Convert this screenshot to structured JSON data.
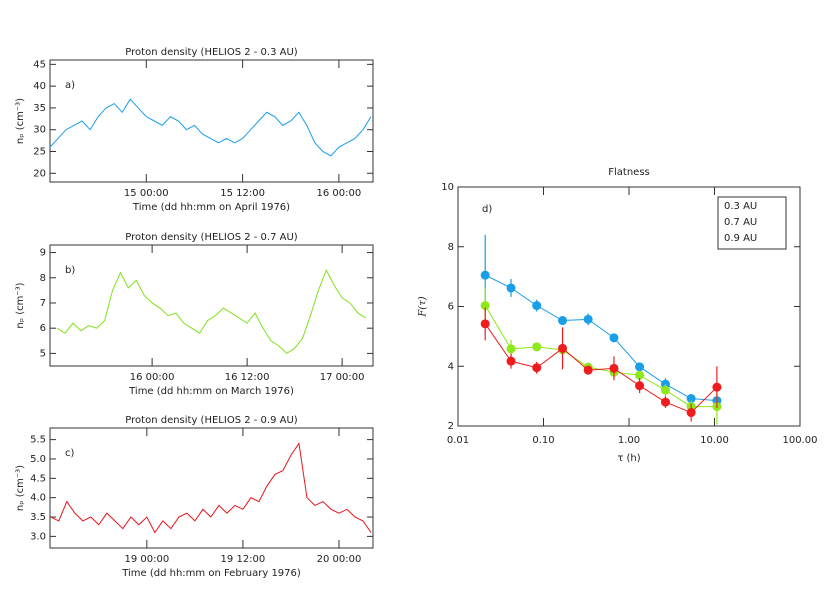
{
  "chart_data": [
    {
      "type": "line",
      "title": "Proton density (HELIOS 2 - 0.3 AU)",
      "annotation": "a)",
      "ylabel": "nₚ (cm⁻³)",
      "xlabel": "Time (dd hh:mm on April 1976)",
      "x": [
        -12,
        -11,
        -10,
        -9,
        -8,
        -7,
        -6,
        -5,
        -4,
        -3,
        -2,
        -1,
        0,
        1,
        2,
        3,
        4,
        5,
        6,
        7,
        8,
        9,
        10,
        11,
        12,
        13,
        14,
        15,
        16,
        17,
        18,
        19,
        20,
        21,
        22,
        23,
        24,
        25,
        26,
        27,
        28
      ],
      "series": [
        {
          "name": "0.3 AU",
          "color": "#1a9ee8",
          "values": [
            26,
            28,
            30,
            31,
            32,
            30,
            33,
            35,
            36,
            34,
            37,
            35,
            33,
            32,
            31,
            33,
            32,
            30,
            31,
            29,
            28,
            27,
            28,
            27,
            28,
            30,
            32,
            34,
            33,
            31,
            32,
            34,
            31,
            27,
            25,
            24,
            26,
            27,
            28,
            30,
            33
          ]
        }
      ],
      "xlim": [
        -12,
        28.25
      ],
      "ylim": [
        18,
        46
      ],
      "yticks": [
        20,
        25,
        30,
        35,
        40,
        45
      ],
      "xticks": [
        {
          "value": 0,
          "label": "15 00:00"
        },
        {
          "value": 12,
          "label": "15 12:00"
        },
        {
          "value": 24,
          "label": "16 00:00"
        }
      ]
    },
    {
      "type": "line",
      "title": "Proton density (HELIOS 2 - 0.7 AU)",
      "annotation": "b)",
      "ylabel": "nₚ (cm⁻³)",
      "xlabel": "Time (dd hh:mm on March 1976)",
      "x": [
        -12,
        -11,
        -10,
        -9,
        -8,
        -7,
        -6,
        -5,
        -4,
        -3,
        -2,
        -1,
        0,
        1,
        2,
        3,
        4,
        5,
        6,
        7,
        8,
        9,
        10,
        11,
        12,
        13,
        14,
        15,
        16,
        17,
        18,
        19,
        20,
        21,
        22,
        23,
        24,
        25,
        26,
        27
      ],
      "series": [
        {
          "name": "0.7 AU",
          "color": "#7fe21a",
          "values": [
            6,
            5.8,
            6.2,
            5.9,
            6.1,
            6,
            6.3,
            7.5,
            8.2,
            7.6,
            7.9,
            7.3,
            7,
            6.8,
            6.5,
            6.6,
            6.2,
            6,
            5.8,
            6.3,
            6.5,
            6.8,
            6.6,
            6.4,
            6.2,
            6.6,
            6,
            5.5,
            5.3,
            5,
            5.2,
            5.6,
            6.5,
            7.5,
            8.3,
            7.7,
            7.2,
            7,
            6.6,
            6.4
          ]
        }
      ],
      "xlim": [
        -12.9,
        27.9
      ],
      "ylim": [
        4.5,
        9.3
      ],
      "yticks": [
        5,
        6,
        7,
        8,
        9
      ],
      "xticks": [
        {
          "value": 0,
          "label": "16 00:00"
        },
        {
          "value": 12,
          "label": "16 12:00"
        },
        {
          "value": 24,
          "label": "17 00:00"
        }
      ]
    },
    {
      "type": "line",
      "title": "Proton density (HELIOS 2 - 0.9 AU)",
      "annotation": "c)",
      "ylabel": "nₚ (cm⁻³)",
      "xlabel": "Time (dd hh:mm on February 1976)",
      "x": [
        -12,
        -11,
        -10,
        -9,
        -8,
        -7,
        -6,
        -5,
        -4,
        -3,
        -2,
        -1,
        0,
        1,
        2,
        3,
        4,
        5,
        6,
        7,
        8,
        9,
        10,
        11,
        12,
        13,
        14,
        15,
        16,
        17,
        18,
        19,
        20,
        21,
        22,
        23,
        24,
        25,
        26,
        27,
        28
      ],
      "series": [
        {
          "name": "0.9 AU",
          "color": "#e8141a",
          "values": [
            3.5,
            3.4,
            3.9,
            3.6,
            3.4,
            3.5,
            3.3,
            3.6,
            3.4,
            3.2,
            3.5,
            3.3,
            3.5,
            3.1,
            3.4,
            3.2,
            3.5,
            3.6,
            3.4,
            3.7,
            3.5,
            3.8,
            3.6,
            3.8,
            3.7,
            4,
            3.9,
            4.3,
            4.6,
            4.7,
            5.1,
            5.4,
            4,
            3.8,
            3.9,
            3.7,
            3.6,
            3.7,
            3.5,
            3.4,
            3.1
          ]
        }
      ],
      "xlim": [
        -12.1,
        28.25
      ],
      "ylim": [
        2.7,
        5.8
      ],
      "yticks": [
        {
          "value": 3,
          "label": "3.0"
        },
        {
          "value": 3.5,
          "label": "3.5"
        },
        {
          "value": 4,
          "label": "4.0"
        },
        {
          "value": 4.5,
          "label": "4.5"
        },
        {
          "value": 5,
          "label": "5.0"
        },
        {
          "value": 5.5,
          "label": "5.5"
        }
      ],
      "xticks": [
        {
          "value": 0,
          "label": "19 00:00"
        },
        {
          "value": 12,
          "label": "19 12:00"
        },
        {
          "value": 24,
          "label": "20 00:00"
        }
      ]
    },
    {
      "type": "errorline",
      "title": "Flatness",
      "annotation": "d)",
      "ylabel": "F(τ)",
      "xlabel": "τ (h)",
      "xscale": "log",
      "legend": "upper right",
      "x": [
        0.0208,
        0.0417,
        0.0833,
        0.167,
        0.333,
        0.667,
        1.33,
        2.67,
        5.33,
        10.67
      ],
      "series": [
        {
          "name": "0.3 AU",
          "color": "#1a9ee8",
          "values": [
            7.05,
            6.62,
            6.03,
            5.53,
            5.57,
            4.95,
            3.98,
            3.4,
            2.92,
            2.85
          ],
          "errors": [
            1.35,
            0.3,
            0.2,
            0.15,
            0.2,
            0.1,
            0.1,
            0.2,
            0.15,
            0.1
          ]
        },
        {
          "name": "0.7 AU",
          "color": "#8ee81a",
          "values": [
            6.03,
            4.58,
            4.65,
            4.55,
            3.97,
            3.8,
            3.7,
            3.2,
            2.65,
            2.65
          ],
          "errors": [
            0.6,
            0.3,
            0.1,
            0.1,
            0.1,
            0.15,
            0.15,
            0.2,
            0.2,
            0.6
          ]
        },
        {
          "name": "0.9 AU",
          "color": "#ee1c1c",
          "values": [
            5.42,
            4.17,
            3.95,
            4.6,
            3.87,
            3.93,
            3.35,
            2.8,
            2.45,
            3.3
          ],
          "errors": [
            0.55,
            0.25,
            0.2,
            0.7,
            0.15,
            0.4,
            0.25,
            0.2,
            0.3,
            0.7
          ]
        }
      ],
      "xlim": [
        0.01,
        100
      ],
      "ylim": [
        2,
        10
      ],
      "yticks": [
        2,
        4,
        6,
        8,
        10
      ],
      "xticks": [
        0.01,
        {
          "value": 0.1,
          "label": "0.10"
        },
        {
          "value": 1,
          "label": "1.00"
        },
        {
          "value": 10,
          "label": "10.00"
        },
        {
          "value": 100,
          "label": "100.00"
        }
      ]
    }
  ]
}
